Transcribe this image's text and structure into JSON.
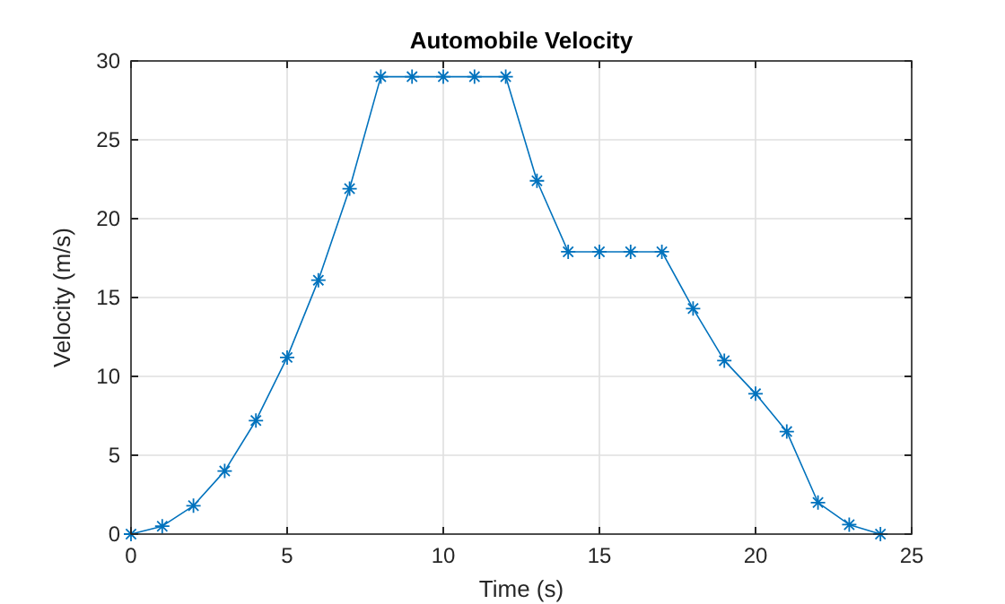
{
  "chart_data": {
    "type": "line",
    "title": "Automobile Velocity",
    "xlabel": "Time (s)",
    "ylabel": "Velocity (m/s)",
    "x": [
      0,
      1,
      2,
      3,
      4,
      5,
      6,
      7,
      8,
      9,
      10,
      11,
      12,
      13,
      14,
      15,
      16,
      17,
      18,
      19,
      20,
      21,
      22,
      23,
      24
    ],
    "series": [
      {
        "color": "#0072bd",
        "values": [
          0,
          0.5,
          1.8,
          4,
          7.2,
          11.2,
          16.1,
          21.9,
          29,
          29,
          29,
          29,
          29,
          22.4,
          17.9,
          17.9,
          17.9,
          17.9,
          14.3,
          11,
          8.9,
          6.5,
          2,
          0.6,
          0
        ]
      }
    ],
    "xlim": [
      0,
      25
    ],
    "xticks": [
      0,
      5,
      10,
      15,
      20,
      25
    ],
    "ylim": [
      0,
      30
    ],
    "yticks": [
      0,
      5,
      10,
      15,
      20,
      25,
      30
    ],
    "grid": true,
    "marker": "cross",
    "line_style": "solid"
  }
}
